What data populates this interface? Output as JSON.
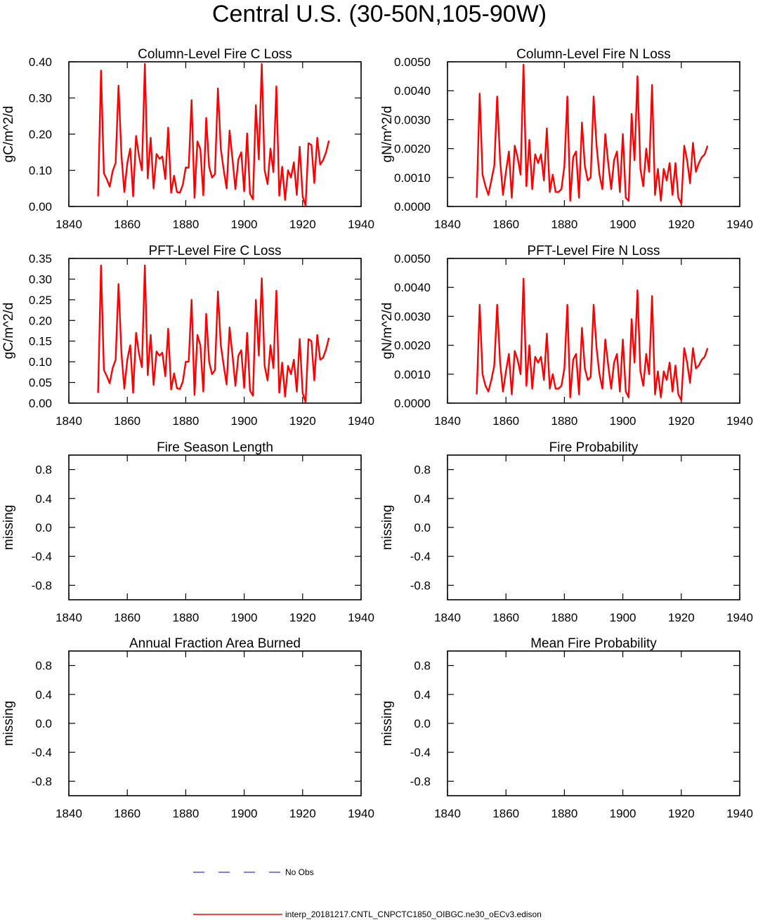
{
  "figure_title": "Central U.S. (30-50N,105-90W)",
  "colors": {
    "model": "#ff0000",
    "obs": "#3333cc",
    "axis": "#000000"
  },
  "legend": {
    "obs_label": "No Obs",
    "model_label": "interp_20181217.CNTL_CNPCTC1850_OIBGC.ne30_oECv3.edison"
  },
  "chart_data": [
    {
      "type": "line",
      "title": "Column-Level Fire C Loss",
      "xlabel": "",
      "ylabel": "gC/m^2/d",
      "xlim": [
        1840,
        1940
      ],
      "ylim": [
        0,
        0.4
      ],
      "x_ticks": [
        1840,
        1860,
        1880,
        1900,
        1920,
        1940
      ],
      "x_tick_labels": [
        "1840",
        "1860",
        "1880",
        "1900",
        "1920",
        "1940"
      ],
      "y_ticks": [
        0,
        0.1,
        0.2,
        0.3,
        0.4
      ],
      "y_tick_labels": [
        "0.00",
        "0.10",
        "0.20",
        "0.30",
        "0.40"
      ],
      "series": [
        {
          "name": "interp_20181217.CNTL_CNPCTC1850_OIBGC.ne30_oECv3.edison",
          "x": [
            1850,
            1851,
            1852,
            1853,
            1854,
            1855,
            1856,
            1857,
            1858,
            1859,
            1860,
            1861,
            1862,
            1863,
            1864,
            1865,
            1866,
            1867,
            1868,
            1869,
            1870,
            1871,
            1872,
            1873,
            1874,
            1875,
            1876,
            1877,
            1878,
            1879,
            1880,
            1881,
            1882,
            1883,
            1884,
            1885,
            1886,
            1887,
            1888,
            1889,
            1890,
            1891,
            1892,
            1893,
            1894,
            1895,
            1896,
            1897,
            1898,
            1899,
            1900,
            1901,
            1902,
            1903,
            1904,
            1905,
            1906,
            1907,
            1908,
            1909,
            1910,
            1911,
            1912,
            1913,
            1914,
            1915,
            1916,
            1917,
            1918,
            1919,
            1920,
            1921,
            1922,
            1923,
            1924,
            1925,
            1926,
            1927,
            1928,
            1929
          ],
          "values": [
            0.028,
            0.376,
            0.092,
            0.075,
            0.055,
            0.098,
            0.12,
            0.334,
            0.14,
            0.04,
            0.12,
            0.16,
            0.028,
            0.195,
            0.14,
            0.1,
            0.394,
            0.078,
            0.19,
            0.05,
            0.145,
            0.132,
            0.138,
            0.076,
            0.218,
            0.038,
            0.085,
            0.04,
            0.038,
            0.06,
            0.108,
            0.107,
            0.294,
            0.024,
            0.18,
            0.158,
            0.031,
            0.245,
            0.11,
            0.08,
            0.09,
            0.326,
            0.16,
            0.1,
            0.05,
            0.21,
            0.13,
            0.048,
            0.13,
            0.15,
            0.042,
            0.202,
            0.035,
            0.02,
            0.28,
            0.13,
            0.394,
            0.1,
            0.062,
            0.16,
            0.095,
            0.332,
            0.03,
            0.11,
            0.018,
            0.1,
            0.08,
            0.122,
            0.032,
            0.165,
            0.028,
            0.002,
            0.175,
            0.17,
            0.065,
            0.19,
            0.116,
            0.128,
            0.15,
            0.182
          ]
        }
      ]
    },
    {
      "type": "line",
      "title": "Column-Level Fire N Loss",
      "xlabel": "",
      "ylabel": "gN/m^2/d",
      "xlim": [
        1840,
        1940
      ],
      "ylim": [
        0,
        0.005
      ],
      "x_ticks": [
        1840,
        1860,
        1880,
        1900,
        1920,
        1940
      ],
      "x_tick_labels": [
        "1840",
        "1860",
        "1880",
        "1900",
        "1920",
        "1940"
      ],
      "y_ticks": [
        0,
        0.001,
        0.002,
        0.003,
        0.004,
        0.005
      ],
      "y_tick_labels": [
        "0.0000",
        "0.0010",
        "0.0020",
        "0.0030",
        "0.0040",
        "0.0050"
      ],
      "series": [
        {
          "name": "interp_20181217.CNTL_CNPCTC1850_OIBGC.ne30_oECv3.edison",
          "x": [
            1850,
            1851,
            1852,
            1853,
            1854,
            1855,
            1856,
            1857,
            1858,
            1859,
            1860,
            1861,
            1862,
            1863,
            1864,
            1865,
            1866,
            1867,
            1868,
            1869,
            1870,
            1871,
            1872,
            1873,
            1874,
            1875,
            1876,
            1877,
            1878,
            1879,
            1880,
            1881,
            1882,
            1883,
            1884,
            1885,
            1886,
            1887,
            1888,
            1889,
            1890,
            1891,
            1892,
            1893,
            1894,
            1895,
            1896,
            1897,
            1898,
            1899,
            1900,
            1901,
            1902,
            1903,
            1904,
            1905,
            1906,
            1907,
            1908,
            1909,
            1910,
            1911,
            1912,
            1913,
            1914,
            1915,
            1916,
            1917,
            1918,
            1919,
            1920,
            1921,
            1922,
            1923,
            1924,
            1925,
            1926,
            1927,
            1928,
            1929
          ],
          "values": [
            0.0003,
            0.0039,
            0.0011,
            0.0007,
            0.0004,
            0.0009,
            0.0014,
            0.0038,
            0.0016,
            0.0004,
            0.0012,
            0.0019,
            0.0003,
            0.0021,
            0.0017,
            0.0011,
            0.0049,
            0.0007,
            0.0023,
            0.0006,
            0.0018,
            0.0015,
            0.0018,
            0.0009,
            0.0027,
            0.0005,
            0.0011,
            0.0005,
            0.0005,
            0.0006,
            0.0014,
            0.0038,
            0.0002,
            0.0017,
            0.0019,
            0.0003,
            0.0029,
            0.0014,
            0.0009,
            0.001,
            0.0038,
            0.0021,
            0.0011,
            0.0006,
            0.0025,
            0.0015,
            0.0006,
            0.0016,
            0.0019,
            0.0005,
            0.0025,
            0.0003,
            0.0002,
            0.0032,
            0.0016,
            0.0045,
            0.0013,
            0.0007,
            0.002,
            0.0012,
            0.0042,
            0.0004,
            0.0013,
            0.0002,
            0.0013,
            0.0009,
            0.0015,
            0.0004,
            0.0015,
            0.0003,
            0.0001,
            0.0021,
            0.0016,
            0.0008,
            0.0022,
            0.0012,
            0.0015,
            0.0017,
            0.0018,
            0.0021
          ]
        }
      ]
    },
    {
      "type": "line",
      "title": "PFT-Level Fire C Loss",
      "xlabel": "",
      "ylabel": "gC/m^2/d",
      "xlim": [
        1840,
        1940
      ],
      "ylim": [
        0,
        0.35
      ],
      "x_ticks": [
        1840,
        1860,
        1880,
        1900,
        1920,
        1940
      ],
      "x_tick_labels": [
        "1840",
        "1860",
        "1880",
        "1900",
        "1920",
        "1940"
      ],
      "y_ticks": [
        0,
        0.05,
        0.1,
        0.15,
        0.2,
        0.25,
        0.3,
        0.35
      ],
      "y_tick_labels": [
        "0.00",
        "0.05",
        "0.10",
        "0.15",
        "0.20",
        "0.25",
        "0.30",
        "0.35"
      ],
      "series": [
        {
          "name": "interp_20181217.CNTL_CNPCTC1850_OIBGC.ne30_oECv3.edison",
          "x": [
            1850,
            1851,
            1852,
            1853,
            1854,
            1855,
            1856,
            1857,
            1858,
            1859,
            1860,
            1861,
            1862,
            1863,
            1864,
            1865,
            1866,
            1867,
            1868,
            1869,
            1870,
            1871,
            1872,
            1873,
            1874,
            1875,
            1876,
            1877,
            1878,
            1879,
            1880,
            1881,
            1882,
            1883,
            1884,
            1885,
            1886,
            1887,
            1888,
            1889,
            1890,
            1891,
            1892,
            1893,
            1894,
            1895,
            1896,
            1897,
            1898,
            1899,
            1900,
            1901,
            1902,
            1903,
            1904,
            1905,
            1906,
            1907,
            1908,
            1909,
            1910,
            1911,
            1912,
            1913,
            1914,
            1915,
            1916,
            1917,
            1918,
            1919,
            1920,
            1921,
            1922,
            1923,
            1924,
            1925,
            1926,
            1927,
            1928,
            1929
          ],
          "values": [
            0.025,
            0.333,
            0.08,
            0.065,
            0.048,
            0.085,
            0.105,
            0.288,
            0.12,
            0.035,
            0.105,
            0.14,
            0.025,
            0.17,
            0.12,
            0.087,
            0.333,
            0.068,
            0.165,
            0.044,
            0.125,
            0.115,
            0.122,
            0.065,
            0.18,
            0.033,
            0.072,
            0.036,
            0.034,
            0.052,
            0.1,
            0.1,
            0.25,
            0.02,
            0.165,
            0.14,
            0.028,
            0.216,
            0.1,
            0.07,
            0.08,
            0.27,
            0.14,
            0.09,
            0.045,
            0.183,
            0.115,
            0.042,
            0.115,
            0.128,
            0.037,
            0.17,
            0.03,
            0.018,
            0.25,
            0.115,
            0.302,
            0.09,
            0.055,
            0.14,
            0.085,
            0.272,
            0.025,
            0.098,
            0.016,
            0.09,
            0.07,
            0.105,
            0.028,
            0.155,
            0.025,
            0.002,
            0.155,
            0.15,
            0.055,
            0.165,
            0.105,
            0.11,
            0.13,
            0.158
          ]
        }
      ]
    },
    {
      "type": "line",
      "title": "PFT-Level Fire N Loss",
      "xlabel": "",
      "ylabel": "gN/m^2/d",
      "xlim": [
        1840,
        1940
      ],
      "ylim": [
        0,
        0.005
      ],
      "x_ticks": [
        1840,
        1860,
        1880,
        1900,
        1920,
        1940
      ],
      "x_tick_labels": [
        "1840",
        "1860",
        "1880",
        "1900",
        "1920",
        "1940"
      ],
      "y_ticks": [
        0,
        0.001,
        0.002,
        0.003,
        0.004,
        0.005
      ],
      "y_tick_labels": [
        "0.0000",
        "0.0010",
        "0.0020",
        "0.0030",
        "0.0040",
        "0.0050"
      ],
      "series": [
        {
          "name": "interp_20181217.CNTL_CNPCTC1850_OIBGC.ne30_oECv3.edison",
          "x": [
            1850,
            1851,
            1852,
            1853,
            1854,
            1855,
            1856,
            1857,
            1858,
            1859,
            1860,
            1861,
            1862,
            1863,
            1864,
            1865,
            1866,
            1867,
            1868,
            1869,
            1870,
            1871,
            1872,
            1873,
            1874,
            1875,
            1876,
            1877,
            1878,
            1879,
            1880,
            1881,
            1882,
            1883,
            1884,
            1885,
            1886,
            1887,
            1888,
            1889,
            1890,
            1891,
            1892,
            1893,
            1894,
            1895,
            1896,
            1897,
            1898,
            1899,
            1900,
            1901,
            1902,
            1903,
            1904,
            1905,
            1906,
            1907,
            1908,
            1909,
            1910,
            1911,
            1912,
            1913,
            1914,
            1915,
            1916,
            1917,
            1918,
            1919,
            1920,
            1921,
            1922,
            1923,
            1924,
            1925,
            1926,
            1927,
            1928,
            1929
          ],
          "values": [
            0.0003,
            0.0034,
            0.001,
            0.0006,
            0.0004,
            0.0008,
            0.0013,
            0.0034,
            0.0014,
            0.0004,
            0.0011,
            0.0017,
            0.0003,
            0.0018,
            0.0015,
            0.001,
            0.0043,
            0.0006,
            0.002,
            0.0005,
            0.0016,
            0.0014,
            0.0016,
            0.0008,
            0.0024,
            0.0005,
            0.001,
            0.0005,
            0.0005,
            0.0006,
            0.0012,
            0.0034,
            0.0002,
            0.0015,
            0.0017,
            0.0003,
            0.0026,
            0.0012,
            0.0008,
            0.0009,
            0.0034,
            0.0019,
            0.001,
            0.0005,
            0.0022,
            0.0013,
            0.0005,
            0.0014,
            0.0017,
            0.0004,
            0.0022,
            0.0004,
            0.0002,
            0.0029,
            0.0014,
            0.0039,
            0.0011,
            0.0006,
            0.0017,
            0.001,
            0.0037,
            0.0003,
            0.0011,
            0.0002,
            0.0011,
            0.0008,
            0.0014,
            0.0004,
            0.0013,
            0.0003,
            0.0001,
            0.0019,
            0.0014,
            0.0007,
            0.0019,
            0.0012,
            0.0013,
            0.0015,
            0.0016,
            0.0019
          ]
        }
      ]
    },
    {
      "type": "line",
      "title": "Fire Season Length",
      "xlabel": "",
      "ylabel": "missing",
      "xlim": [
        1840,
        1940
      ],
      "ylim": [
        -1,
        1
      ],
      "x_ticks": [
        1840,
        1860,
        1880,
        1900,
        1920,
        1940
      ],
      "x_tick_labels": [
        "1840",
        "1860",
        "1880",
        "1900",
        "1920",
        "1940"
      ],
      "y_ticks": [
        -0.8,
        -0.4,
        0,
        0.4,
        0.8
      ],
      "y_tick_labels": [
        "-0.8",
        "-0.4",
        "0.0",
        "0.4",
        "0.8"
      ],
      "series": []
    },
    {
      "type": "line",
      "title": "Fire Probability",
      "xlabel": "",
      "ylabel": "missing",
      "xlim": [
        1840,
        1940
      ],
      "ylim": [
        -1,
        1
      ],
      "x_ticks": [
        1840,
        1860,
        1880,
        1900,
        1920,
        1940
      ],
      "x_tick_labels": [
        "1840",
        "1860",
        "1880",
        "1900",
        "1920",
        "1940"
      ],
      "y_ticks": [
        -0.8,
        -0.4,
        0,
        0.4,
        0.8
      ],
      "y_tick_labels": [
        "-0.8",
        "-0.4",
        "0.0",
        "0.4",
        "0.8"
      ],
      "series": []
    },
    {
      "type": "line",
      "title": "Annual Fraction Area Burned",
      "xlabel": "",
      "ylabel": "missing",
      "xlim": [
        1840,
        1940
      ],
      "ylim": [
        -1,
        1
      ],
      "x_ticks": [
        1840,
        1860,
        1880,
        1900,
        1920,
        1940
      ],
      "x_tick_labels": [
        "1840",
        "1860",
        "1880",
        "1900",
        "1920",
        "1940"
      ],
      "y_ticks": [
        -0.8,
        -0.4,
        0,
        0.4,
        0.8
      ],
      "y_tick_labels": [
        "-0.8",
        "-0.4",
        "0.0",
        "0.4",
        "0.8"
      ],
      "series": []
    },
    {
      "type": "line",
      "title": "Mean Fire Probability",
      "xlabel": "",
      "ylabel": "missing",
      "xlim": [
        1840,
        1940
      ],
      "ylim": [
        -1,
        1
      ],
      "x_ticks": [
        1840,
        1860,
        1880,
        1900,
        1920,
        1940
      ],
      "x_tick_labels": [
        "1840",
        "1860",
        "1880",
        "1900",
        "1920",
        "1940"
      ],
      "y_ticks": [
        -0.8,
        -0.4,
        0,
        0.4,
        0.8
      ],
      "y_tick_labels": [
        "-0.8",
        "-0.4",
        "0.0",
        "0.4",
        "0.8"
      ],
      "series": []
    }
  ]
}
